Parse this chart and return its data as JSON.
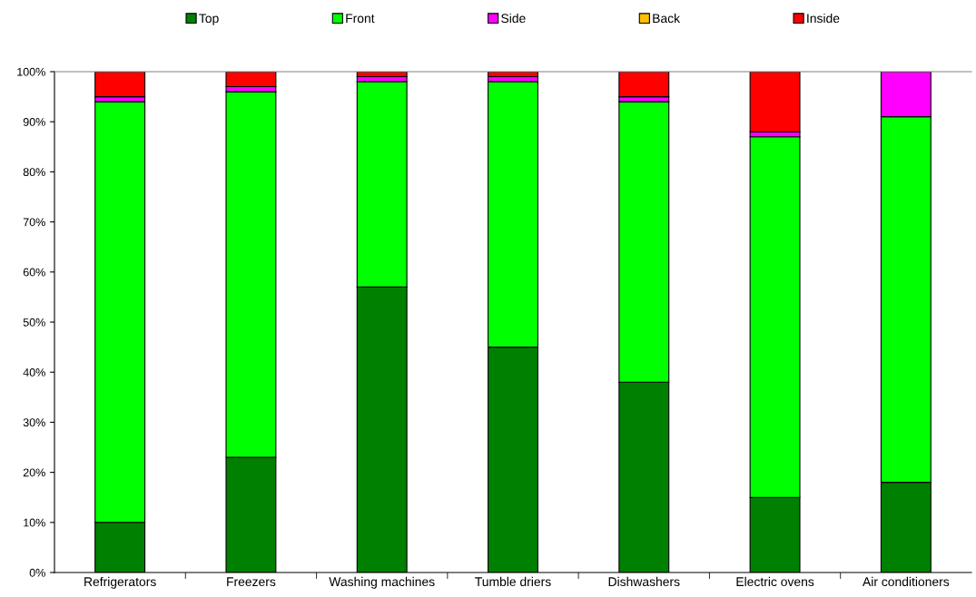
{
  "chart_data": {
    "type": "bar",
    "stacked": true,
    "legend": "top",
    "categories": [
      "Refrigerators",
      "Freezers",
      "Washing machines",
      "Tumble driers",
      "Dishwashers",
      "Electric ovens",
      "Air conditioners"
    ],
    "series": [
      {
        "name": "Top",
        "color": "#008000",
        "values": [
          10,
          23,
          57,
          45,
          38,
          15,
          18
        ]
      },
      {
        "name": "Front",
        "color": "#00ff00",
        "values": [
          84,
          73,
          41,
          53,
          56,
          72,
          73
        ]
      },
      {
        "name": "Side",
        "color": "#ff00ff",
        "values": [
          1,
          1,
          1,
          1,
          1,
          1,
          9
        ]
      },
      {
        "name": "Back",
        "color": "#ffc000",
        "values": [
          0,
          0,
          0,
          0,
          0,
          0,
          0
        ]
      },
      {
        "name": "Inside",
        "color": "#ff0000",
        "values": [
          5,
          3,
          1,
          1,
          5,
          12,
          0
        ]
      }
    ],
    "ylim": [
      0,
      100
    ],
    "yticks": [
      {
        "value": 0,
        "label": "0%"
      },
      {
        "value": 10,
        "label": "10%"
      },
      {
        "value": 20,
        "label": "20%"
      },
      {
        "value": 30,
        "label": "30%"
      },
      {
        "value": 40,
        "label": "40%"
      },
      {
        "value": 50,
        "label": "50%"
      },
      {
        "value": 60,
        "label": "60%"
      },
      {
        "value": 70,
        "label": "70%"
      },
      {
        "value": 80,
        "label": "80%"
      },
      {
        "value": 90,
        "label": "90%"
      },
      {
        "value": 100,
        "label": "100%"
      }
    ],
    "grid": false
  }
}
